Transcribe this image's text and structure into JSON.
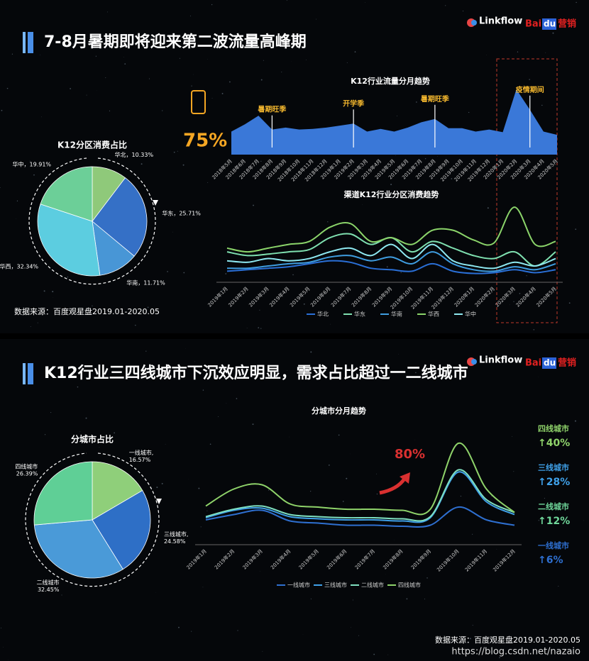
{
  "slides": [
    {
      "title": "7-8月暑期即将迎来第二波流量高峰期",
      "source": "数据来源：百度观星盘2019.01-2020.05"
    },
    {
      "title": "K12行业三四线城市下沉效应明显，需求占比超过一二线城市",
      "source": "数据来源：百度观星盘2019.01-2020.05"
    }
  ],
  "logos": {
    "linkflow": "Linkflow",
    "baidu_bai": "Bai",
    "baidu_du": "du",
    "baidu_marketing": "营销"
  },
  "watermark": "https://blog.csdn.net/nazaio",
  "chart_data": [
    {
      "type": "pie",
      "title": "K12分区消费占比",
      "values": [
        10.33,
        25.71,
        11.71,
        32.34,
        19.91
      ],
      "value_labels": [
        "华北，10.33%",
        "华东，25.71%",
        "华南，11.71%",
        "华西，32.34%",
        "华中，19.91%"
      ],
      "colors": [
        "#8fc97a",
        "#3570c6",
        "#4896d6",
        "#5ccde0",
        "#6ccf98"
      ]
    },
    {
      "type": "area",
      "title": "K12行业流量分月趋势",
      "categories": [
        "2018年5月",
        "2018年6月",
        "2018年7月",
        "2018年8月",
        "2018年9月",
        "2018年10月",
        "2018年11月",
        "2018年12月",
        "2019年1月",
        "2019年2月",
        "2019年3月",
        "2019年4月",
        "2019年5月",
        "2019年6月",
        "2019年7月",
        "2019年8月",
        "2019年9月",
        "2019年10月",
        "2019年11月",
        "2019年12月",
        "2020年1月",
        "2020年2月",
        "2020年3月",
        "2020年4月",
        "2020年5月"
      ],
      "values": [
        35,
        46,
        59,
        38,
        41,
        38,
        39,
        41,
        44,
        47,
        35,
        39,
        35,
        41,
        49,
        54,
        40,
        40,
        35,
        38,
        34,
        99,
        68,
        35,
        30
      ],
      "color": "#3a78d8",
      "ylim": [
        0,
        100
      ],
      "annotations": [
        {
          "text": "暑期旺季",
          "x": "2018年8月"
        },
        {
          "text": "开学季",
          "x": "2019年2月"
        },
        {
          "text": "暑期旺季",
          "x": "2019年8月"
        },
        {
          "text": "疫情期间",
          "x": "2020年3月"
        }
      ],
      "highlight": "75%"
    },
    {
      "type": "line",
      "title": "渠道K12行业分区消费趋势",
      "categories": [
        "2019年1月",
        "2019年2月",
        "2019年3月",
        "2019年4月",
        "2019年5月",
        "2019年6月",
        "2019年7月",
        "2019年8月",
        "2019年9月",
        "2019年10月",
        "2019年11月",
        "2019年12月",
        "2020年1月",
        "2020年2月",
        "2020年3月",
        "2020年4月",
        "2020年5月"
      ],
      "ylim": [
        0,
        100
      ],
      "series": [
        {
          "name": "华北",
          "color": "#2a6fd6",
          "values": [
            12,
            14,
            16,
            18,
            22,
            26,
            24,
            16,
            14,
            12,
            22,
            12,
            9,
            10,
            14,
            10,
            14
          ]
        },
        {
          "name": "华东",
          "color": "#7fe0b0",
          "values": [
            38,
            33,
            35,
            38,
            41,
            57,
            62,
            48,
            57,
            38,
            52,
            43,
            33,
            29,
            38,
            19,
            38
          ]
        },
        {
          "name": "华南",
          "color": "#3f9de0",
          "values": [
            16,
            16,
            19,
            22,
            24,
            31,
            33,
            26,
            31,
            22,
            38,
            22,
            14,
            12,
            18,
            14,
            22
          ]
        },
        {
          "name": "华西",
          "color": "#8bd46a",
          "values": [
            43,
            38,
            43,
            48,
            52,
            71,
            76,
            52,
            57,
            48,
            67,
            67,
            54,
            50,
            98,
            48,
            52
          ]
        },
        {
          "name": "华中",
          "color": "#8ee8f0",
          "values": [
            26,
            24,
            29,
            26,
            29,
            38,
            43,
            33,
            48,
            29,
            48,
            26,
            19,
            16,
            24,
            19,
            29
          ]
        }
      ]
    },
    {
      "type": "pie",
      "title": "分城市占比",
      "categories": [
        "一线城市,",
        "三线城市,",
        "二线城市",
        "四线城市"
      ],
      "values": [
        16.57,
        24.58,
        32.45,
        26.39
      ],
      "value_labels": [
        "16.57%",
        "24.58%",
        "32.45%",
        "26.39%"
      ],
      "colors": [
        "#8fcf7a",
        "#2e6fc6",
        "#4a9ad8",
        "#5fcf96"
      ]
    },
    {
      "type": "line",
      "title": "分城市分月趋势",
      "categories": [
        "2019年1月",
        "2019年2月",
        "2019年3月",
        "2019年4月",
        "2019年5月",
        "2019年6月",
        "2019年7月",
        "2019年8月",
        "2019年9月",
        "2019年10月",
        "2019年11月",
        "2019年12月"
      ],
      "ylim": [
        0,
        100
      ],
      "series": [
        {
          "name": "一线城市",
          "color": "#2e6fd0",
          "values": [
            18,
            23,
            27,
            17,
            15,
            13,
            13,
            12,
            13,
            30,
            18,
            13
          ]
        },
        {
          "name": "三线城市",
          "color": "#3fa0e8",
          "values": [
            20,
            27,
            29,
            21,
            19,
            18,
            18,
            17,
            20,
            63,
            35,
            23
          ]
        },
        {
          "name": "二线城市",
          "color": "#7fe0c0",
          "values": [
            21,
            28,
            31,
            23,
            21,
            20,
            20,
            19,
            21,
            65,
            37,
            25
          ]
        },
        {
          "name": "四线城市",
          "color": "#8fd36a",
          "values": [
            31,
            47,
            51,
            33,
            30,
            28,
            28,
            27,
            28,
            90,
            47,
            25
          ]
        }
      ],
      "annotation": "80%",
      "growth": [
        {
          "name": "四线城市",
          "label": "↑40%",
          "color": "#8fd36a"
        },
        {
          "name": "三线城市",
          "label": "↑28%",
          "color": "#3fa0e8"
        },
        {
          "name": "二线城市",
          "label": "↑12%",
          "color": "#6fd69a"
        },
        {
          "name": "一线城市",
          "label": "↑6%",
          "color": "#2e6fd0"
        }
      ]
    }
  ]
}
